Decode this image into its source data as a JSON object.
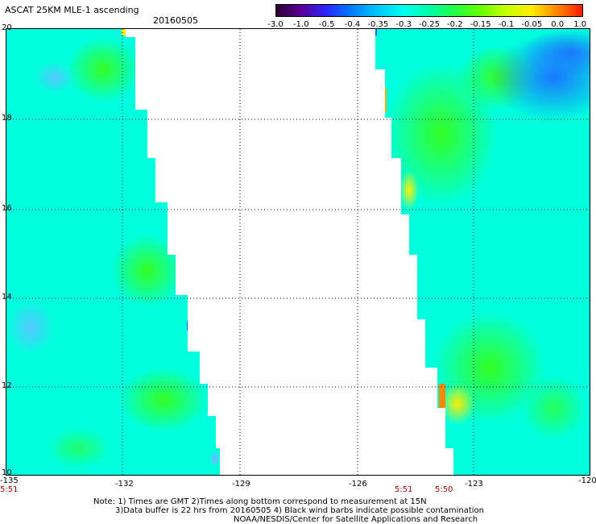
{
  "title": "ASCAT 25KM MLE-1 ascending",
  "date": "20160505",
  "colorbar": {
    "labels": [
      "-3.0",
      "-1.0",
      "-0.5",
      "-0.4",
      "-0.35",
      "-0.3",
      "-0.25",
      "-0.2",
      "-0.15",
      "-0.1",
      "-0.05",
      "0.0",
      "1.0"
    ],
    "colors": [
      "#2a0030",
      "#5a0098",
      "#2a28ff",
      "#0080ff",
      "#00c8ff",
      "#00ffee",
      "#00ffaa",
      "#22ff44",
      "#66ff00",
      "#c8ff00",
      "#ffee00",
      "#ff8800",
      "#ff1a00"
    ]
  },
  "axes": {
    "lon_ticks": [
      "-135",
      "-132",
      "-129",
      "-126",
      "-123",
      "-120"
    ],
    "lat_ticks": [
      "20",
      "18",
      "16",
      "14",
      "12",
      "10"
    ]
  },
  "times": {
    "left": "5:51",
    "mid1": "5:51",
    "mid2": "5:50"
  },
  "notes": {
    "line1": "Note: 1) Times are GMT 2)Times along bottom correspond to measurement at 15N",
    "line2": "3)Data buffer is 22 hrs from 20160505 4) Black wind barbs indicate possible contamination",
    "line3": "NOAA/NESDIS/Center for Satellite Applications and Research"
  }
}
